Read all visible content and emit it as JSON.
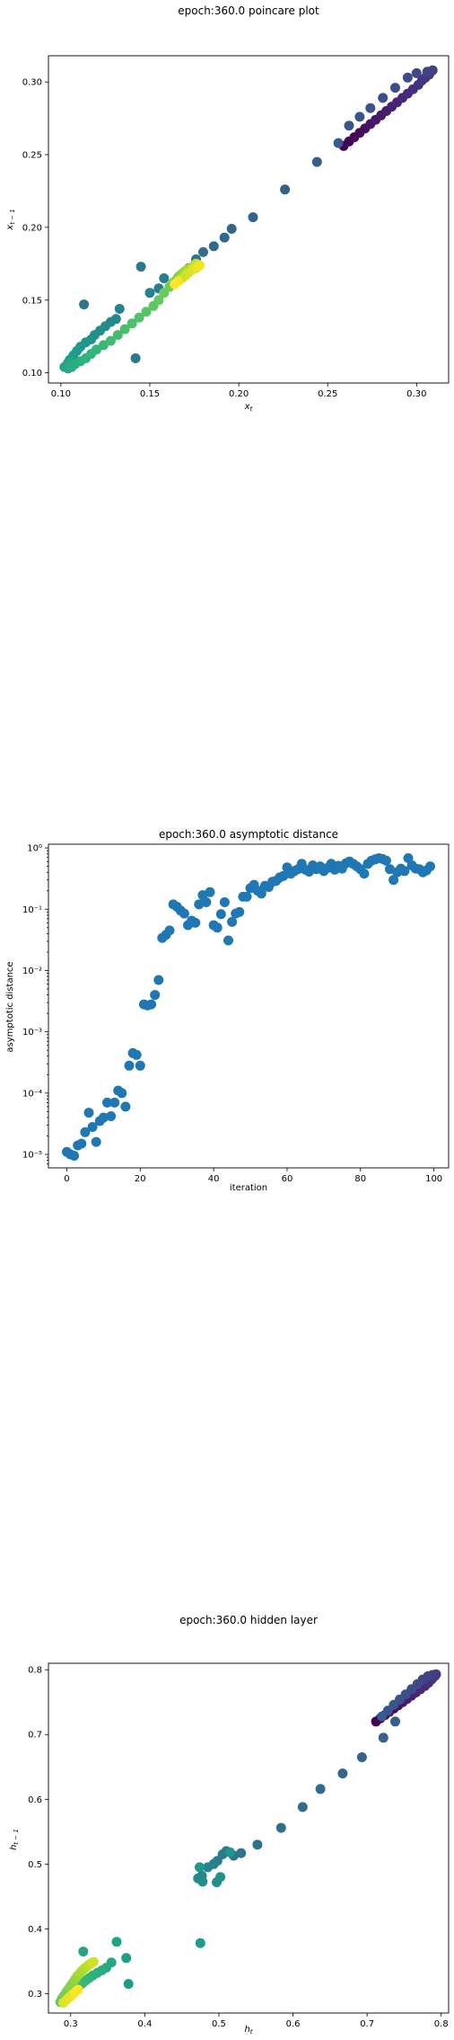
{
  "chart_data": [
    {
      "type": "scatter",
      "title": "epoch:360.0 poincare plot",
      "xlabel": "x_t",
      "ylabel": "x_{t-1}",
      "xlim": [
        0.093,
        0.318
      ],
      "ylim": [
        0.093,
        0.318
      ],
      "xticks": [
        0.1,
        0.15,
        0.2,
        0.25,
        0.3
      ],
      "xtick_labels": [
        "0.10",
        "0.15",
        "0.20",
        "0.25",
        "0.30"
      ],
      "yticks": [
        0.1,
        0.15,
        0.2,
        0.25,
        0.3
      ],
      "ytick_labels": [
        "0.10",
        "0.15",
        "0.20",
        "0.25",
        "0.30"
      ],
      "colormap": "viridis",
      "points": [
        [
          0.259,
          0.256
        ],
        [
          0.262,
          0.259
        ],
        [
          0.265,
          0.262
        ],
        [
          0.268,
          0.265
        ],
        [
          0.271,
          0.268
        ],
        [
          0.274,
          0.271
        ],
        [
          0.277,
          0.274
        ],
        [
          0.28,
          0.277
        ],
        [
          0.283,
          0.28
        ],
        [
          0.286,
          0.283
        ],
        [
          0.289,
          0.286
        ],
        [
          0.292,
          0.289
        ],
        [
          0.295,
          0.292
        ],
        [
          0.298,
          0.295
        ],
        [
          0.301,
          0.298
        ],
        [
          0.303,
          0.301
        ],
        [
          0.305,
          0.303
        ],
        [
          0.307,
          0.305
        ],
        [
          0.308,
          0.307
        ],
        [
          0.309,
          0.308
        ],
        [
          0.306,
          0.307
        ],
        [
          0.3,
          0.306
        ],
        [
          0.295,
          0.303
        ],
        [
          0.288,
          0.296
        ],
        [
          0.281,
          0.289
        ],
        [
          0.274,
          0.282
        ],
        [
          0.268,
          0.276
        ],
        [
          0.262,
          0.27
        ],
        [
          0.256,
          0.258
        ],
        [
          0.244,
          0.245
        ],
        [
          0.226,
          0.226
        ],
        [
          0.208,
          0.207
        ],
        [
          0.196,
          0.199
        ],
        [
          0.192,
          0.193
        ],
        [
          0.186,
          0.187
        ],
        [
          0.18,
          0.183
        ],
        [
          0.176,
          0.178
        ],
        [
          0.172,
          0.172
        ],
        [
          0.113,
          0.147
        ],
        [
          0.145,
          0.173
        ],
        [
          0.142,
          0.11
        ],
        [
          0.158,
          0.165
        ],
        [
          0.155,
          0.158
        ],
        [
          0.15,
          0.155
        ],
        [
          0.133,
          0.144
        ],
        [
          0.131,
          0.137
        ],
        [
          0.128,
          0.135
        ],
        [
          0.125,
          0.132
        ],
        [
          0.122,
          0.129
        ],
        [
          0.119,
          0.126
        ],
        [
          0.117,
          0.123
        ],
        [
          0.114,
          0.121
        ],
        [
          0.111,
          0.118
        ],
        [
          0.109,
          0.115
        ],
        [
          0.107,
          0.112
        ],
        [
          0.105,
          0.109
        ],
        [
          0.104,
          0.107
        ],
        [
          0.103,
          0.105
        ],
        [
          0.102,
          0.104
        ],
        [
          0.104,
          0.103
        ],
        [
          0.106,
          0.104
        ],
        [
          0.108,
          0.106
        ],
        [
          0.111,
          0.108
        ],
        [
          0.114,
          0.11
        ],
        [
          0.117,
          0.113
        ],
        [
          0.12,
          0.116
        ],
        [
          0.124,
          0.119
        ],
        [
          0.128,
          0.122
        ],
        [
          0.132,
          0.126
        ],
        [
          0.136,
          0.13
        ],
        [
          0.14,
          0.134
        ],
        [
          0.144,
          0.138
        ],
        [
          0.148,
          0.142
        ],
        [
          0.152,
          0.146
        ],
        [
          0.155,
          0.15
        ],
        [
          0.158,
          0.155
        ],
        [
          0.161,
          0.159
        ],
        [
          0.163,
          0.162
        ],
        [
          0.165,
          0.164
        ],
        [
          0.166,
          0.166
        ],
        [
          0.167,
          0.167
        ],
        [
          0.168,
          0.168
        ],
        [
          0.169,
          0.169
        ],
        [
          0.17,
          0.17
        ],
        [
          0.171,
          0.171
        ],
        [
          0.172,
          0.171
        ],
        [
          0.173,
          0.172
        ],
        [
          0.174,
          0.173
        ],
        [
          0.175,
          0.174
        ],
        [
          0.176,
          0.175
        ],
        [
          0.168,
          0.165
        ],
        [
          0.17,
          0.167
        ],
        [
          0.172,
          0.169
        ],
        [
          0.174,
          0.171
        ],
        [
          0.176,
          0.172
        ],
        [
          0.177,
          0.173
        ],
        [
          0.178,
          0.174
        ],
        [
          0.166,
          0.163
        ],
        [
          0.164,
          0.161
        ]
      ]
    },
    {
      "type": "scatter",
      "title": "epoch:360.0 asymptotic distance",
      "xlabel": "iteration",
      "ylabel": "asymptotic distance",
      "yscale": "log",
      "xlim": [
        -5,
        104
      ],
      "ylim_log10": [
        -5.22,
        0.06
      ],
      "xticks": [
        0,
        20,
        40,
        60,
        80,
        100
      ],
      "xtick_labels": [
        "0",
        "20",
        "40",
        "60",
        "80",
        "100"
      ],
      "yticks_log10": [
        -5,
        -4,
        -3,
        -2,
        -1,
        0
      ],
      "ytick_labels": [
        "10⁻⁵",
        "10⁻⁴",
        "10⁻³",
        "10⁻²",
        "10⁻¹",
        "10⁰"
      ],
      "color": "#1f77b4",
      "x": [
        0,
        1,
        2,
        3,
        4,
        5,
        6,
        7,
        8,
        9,
        10,
        11,
        12,
        13,
        14,
        15,
        16,
        17,
        18,
        19,
        20,
        21,
        22,
        23,
        24,
        25,
        26,
        27,
        28,
        29,
        30,
        31,
        32,
        33,
        34,
        35,
        36,
        37,
        38,
        39,
        40,
        41,
        42,
        43,
        44,
        45,
        46,
        47,
        48,
        49,
        50,
        51,
        52,
        53,
        54,
        55,
        56,
        57,
        58,
        59,
        60,
        61,
        62,
        63,
        64,
        65,
        66,
        67,
        68,
        69,
        70,
        71,
        72,
        73,
        74,
        75,
        76,
        77,
        78,
        79,
        80,
        81,
        82,
        83,
        84,
        85,
        86,
        87,
        88,
        89,
        90,
        91,
        92,
        93,
        94,
        95,
        96,
        97,
        98,
        99
      ],
      "y": [
        1.1e-05,
        1e-05,
        9.5e-06,
        1.4e-05,
        1.5e-05,
        2.3e-05,
        4.8e-05,
        2.8e-05,
        1.6e-05,
        3.5e-05,
        4e-05,
        7e-05,
        4.2e-05,
        7e-05,
        0.00011,
        0.0001,
        6e-05,
        0.00028,
        0.00045,
        0.00042,
        0.00028,
        0.0028,
        0.0027,
        0.0028,
        0.004,
        0.007,
        0.034,
        0.038,
        0.045,
        0.12,
        0.11,
        0.095,
        0.085,
        0.055,
        0.065,
        0.06,
        0.12,
        0.17,
        0.13,
        0.19,
        0.055,
        0.05,
        0.083,
        0.13,
        0.031,
        0.062,
        0.085,
        0.09,
        0.16,
        0.16,
        0.22,
        0.25,
        0.2,
        0.18,
        0.24,
        0.23,
        0.28,
        0.29,
        0.33,
        0.35,
        0.48,
        0.38,
        0.42,
        0.45,
        0.55,
        0.44,
        0.41,
        0.52,
        0.45,
        0.5,
        0.42,
        0.47,
        0.55,
        0.44,
        0.51,
        0.46,
        0.56,
        0.6,
        0.55,
        0.5,
        0.45,
        0.38,
        0.55,
        0.62,
        0.65,
        0.68,
        0.66,
        0.62,
        0.45,
        0.3,
        0.4,
        0.46,
        0.42,
        0.68,
        0.52,
        0.46,
        0.45,
        0.4,
        0.43,
        0.5
      ]
    },
    {
      "type": "scatter",
      "title": "epoch:360.0 hidden layer",
      "xlabel": "h_t",
      "ylabel": "h_{t-1}",
      "xlim": [
        0.27,
        0.81
      ],
      "ylim": [
        0.27,
        0.81
      ],
      "xticks": [
        0.3,
        0.4,
        0.5,
        0.6,
        0.7,
        0.8
      ],
      "xtick_labels": [
        "0.3",
        "0.4",
        "0.5",
        "0.6",
        "0.7",
        "0.8"
      ],
      "yticks": [
        0.3,
        0.4,
        0.5,
        0.6,
        0.7,
        0.8
      ],
      "ytick_labels": [
        "0.3",
        "0.4",
        "0.5",
        "0.6",
        "0.7",
        "0.8"
      ],
      "colormap": "viridis",
      "points": [
        [
          0.712,
          0.72
        ],
        [
          0.718,
          0.725
        ],
        [
          0.724,
          0.73
        ],
        [
          0.73,
          0.735
        ],
        [
          0.736,
          0.74
        ],
        [
          0.742,
          0.745
        ],
        [
          0.748,
          0.75
        ],
        [
          0.754,
          0.755
        ],
        [
          0.76,
          0.76
        ],
        [
          0.766,
          0.765
        ],
        [
          0.772,
          0.77
        ],
        [
          0.778,
          0.775
        ],
        [
          0.783,
          0.78
        ],
        [
          0.787,
          0.785
        ],
        [
          0.79,
          0.789
        ],
        [
          0.792,
          0.791
        ],
        [
          0.793,
          0.793
        ],
        [
          0.788,
          0.792
        ],
        [
          0.782,
          0.79
        ],
        [
          0.775,
          0.785
        ],
        [
          0.768,
          0.778
        ],
        [
          0.76,
          0.77
        ],
        [
          0.752,
          0.762
        ],
        [
          0.744,
          0.754
        ],
        [
          0.736,
          0.746
        ],
        [
          0.728,
          0.737
        ],
        [
          0.72,
          0.728
        ],
        [
          0.738,
          0.72
        ],
        [
          0.722,
          0.695
        ],
        [
          0.693,
          0.665
        ],
        [
          0.667,
          0.64
        ],
        [
          0.637,
          0.616
        ],
        [
          0.613,
          0.588
        ],
        [
          0.584,
          0.556
        ],
        [
          0.552,
          0.53
        ],
        [
          0.53,
          0.517
        ],
        [
          0.52,
          0.513
        ],
        [
          0.51,
          0.52
        ],
        [
          0.505,
          0.515
        ],
        [
          0.498,
          0.505
        ],
        [
          0.493,
          0.5
        ],
        [
          0.485,
          0.495
        ],
        [
          0.477,
          0.482
        ],
        [
          0.472,
          0.478
        ],
        [
          0.478,
          0.473
        ],
        [
          0.497,
          0.472
        ],
        [
          0.502,
          0.48
        ],
        [
          0.515,
          0.518
        ],
        [
          0.474,
          0.495
        ],
        [
          0.475,
          0.378
        ],
        [
          0.378,
          0.315
        ],
        [
          0.375,
          0.355
        ],
        [
          0.362,
          0.38
        ],
        [
          0.317,
          0.365
        ],
        [
          0.355,
          0.348
        ],
        [
          0.348,
          0.34
        ],
        [
          0.342,
          0.336
        ],
        [
          0.336,
          0.332
        ],
        [
          0.33,
          0.328
        ],
        [
          0.325,
          0.324
        ],
        [
          0.32,
          0.32
        ],
        [
          0.316,
          0.316
        ],
        [
          0.312,
          0.312
        ],
        [
          0.308,
          0.308
        ],
        [
          0.304,
          0.304
        ],
        [
          0.3,
          0.3
        ],
        [
          0.296,
          0.296
        ],
        [
          0.292,
          0.293
        ],
        [
          0.289,
          0.29
        ],
        [
          0.286,
          0.287
        ],
        [
          0.288,
          0.292
        ],
        [
          0.291,
          0.297
        ],
        [
          0.294,
          0.302
        ],
        [
          0.297,
          0.307
        ],
        [
          0.3,
          0.312
        ],
        [
          0.303,
          0.317
        ],
        [
          0.306,
          0.322
        ],
        [
          0.309,
          0.327
        ],
        [
          0.312,
          0.331
        ],
        [
          0.315,
          0.335
        ],
        [
          0.318,
          0.338
        ],
        [
          0.321,
          0.341
        ],
        [
          0.324,
          0.344
        ],
        [
          0.327,
          0.346
        ],
        [
          0.329,
          0.348
        ],
        [
          0.331,
          0.349
        ],
        [
          0.29,
          0.286
        ],
        [
          0.294,
          0.29
        ],
        [
          0.298,
          0.294
        ],
        [
          0.302,
          0.298
        ],
        [
          0.306,
          0.302
        ],
        [
          0.31,
          0.306
        ]
      ]
    }
  ]
}
